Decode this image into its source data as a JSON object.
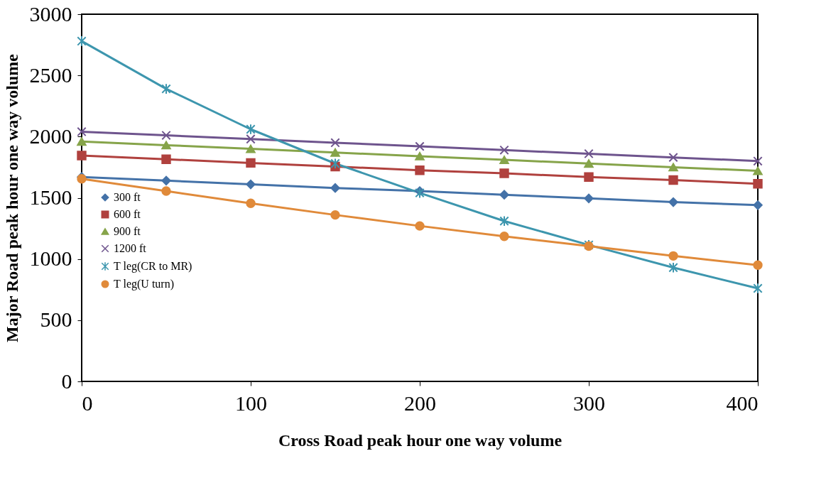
{
  "chart_data": {
    "type": "line",
    "xlabel": "Cross Road peak hour one way volume",
    "ylabel": "Major Road peak hour one way  volume",
    "x": [
      0,
      50,
      100,
      150,
      200,
      250,
      300,
      350,
      400
    ],
    "xlim": [
      0,
      400
    ],
    "xticks": [
      0,
      100,
      200,
      300,
      400
    ],
    "ylim": [
      0,
      3000
    ],
    "yticks": [
      0,
      500,
      1000,
      1500,
      2000,
      2500,
      3000
    ],
    "grid": false,
    "legend": "left",
    "series": [
      {
        "name": "300 ft",
        "color": "#4472a8",
        "marker": "diamond",
        "values": [
          1670,
          1640,
          1610,
          1580,
          1555,
          1525,
          1495,
          1465,
          1440
        ]
      },
      {
        "name": "600 ft",
        "color": "#b0413e",
        "marker": "square",
        "values": [
          1845,
          1815,
          1785,
          1755,
          1725,
          1700,
          1670,
          1645,
          1615
        ]
      },
      {
        "name": "900 ft",
        "color": "#86a44a",
        "marker": "triangle",
        "values": [
          1960,
          1930,
          1900,
          1870,
          1840,
          1810,
          1780,
          1750,
          1720
        ]
      },
      {
        "name": "1200 ft",
        "color": "#6e548d",
        "marker": "cross",
        "values": [
          2040,
          2010,
          1980,
          1950,
          1920,
          1890,
          1860,
          1830,
          1800
        ]
      },
      {
        "name": "T leg(CR to MR)",
        "color": "#3d96ae",
        "marker": "cross",
        "values": [
          2780,
          2390,
          2060,
          1780,
          1540,
          1310,
          1115,
          930,
          760
        ]
      },
      {
        "name": "T leg(U turn)",
        "color": "#e08a3a",
        "marker": "circle",
        "values": [
          1655,
          1555,
          1455,
          1360,
          1270,
          1185,
          1105,
          1025,
          950
        ]
      }
    ]
  }
}
